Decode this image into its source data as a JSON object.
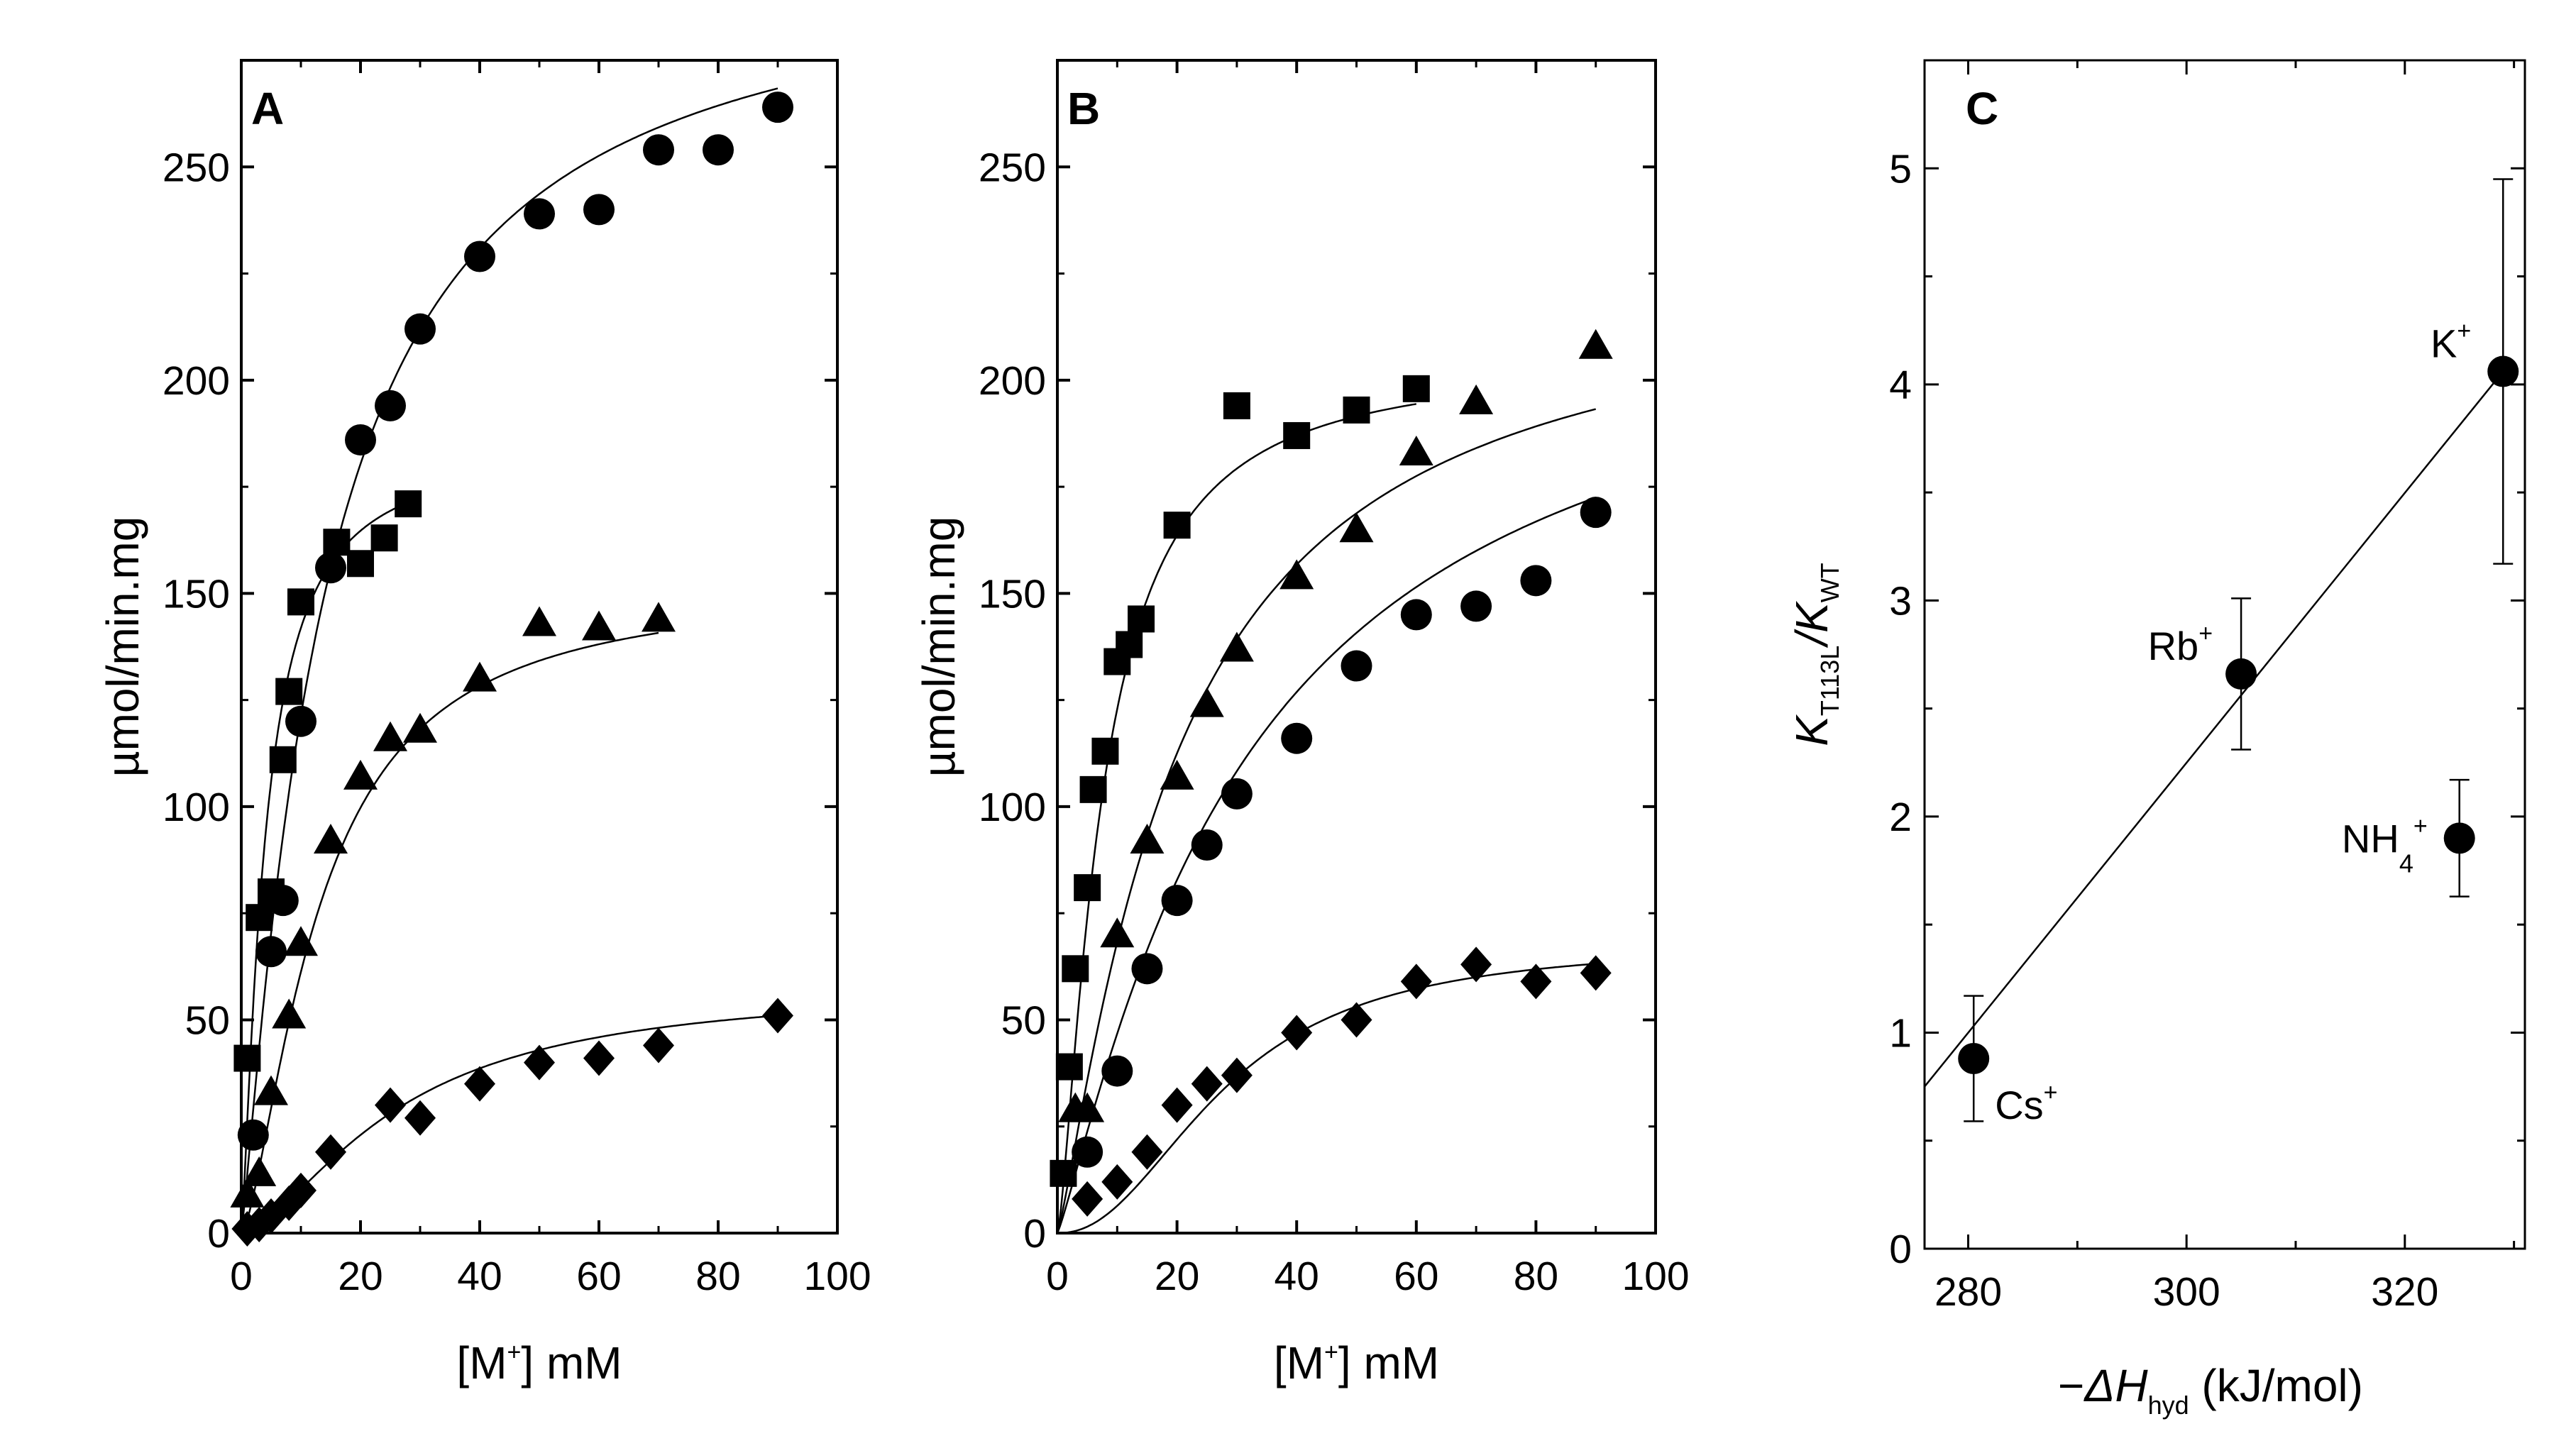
{
  "chart_data": [
    {
      "type": "scatter",
      "panel": "A",
      "ylabel": "µmol/min.mg",
      "xlabel_base": "[M",
      "xlabel_sup": "+",
      "xlabel_rest": "] mM",
      "xlim": [
        0,
        100
      ],
      "ylim": [
        0,
        275
      ],
      "xticks": [
        0,
        20,
        40,
        60,
        80,
        100
      ],
      "yticks": [
        0,
        50,
        100,
        150,
        200,
        250
      ],
      "series": [
        {
          "name": "circle",
          "marker": "circle",
          "x": [
            2,
            5,
            7,
            10,
            15,
            20,
            25,
            30,
            40,
            50,
            60,
            70,
            80,
            90
          ],
          "y": [
            23,
            66,
            78,
            120,
            156,
            186,
            194,
            212,
            229,
            239,
            240,
            254,
            254,
            264
          ],
          "fit": {
            "vmax": 300,
            "km": 14,
            "h": 1.15
          }
        },
        {
          "name": "square",
          "marker": "square",
          "x": [
            1,
            3,
            5,
            7,
            8,
            10,
            16,
            20,
            24,
            28
          ],
          "y": [
            41,
            74,
            80,
            111,
            127,
            148,
            162,
            157,
            163,
            171
          ],
          "fit": {
            "vmax": 185,
            "km": 4,
            "h": 1.3
          }
        },
        {
          "name": "triangle",
          "marker": "triangle",
          "x": [
            1,
            3,
            5,
            8,
            10,
            15,
            20,
            25,
            30,
            40,
            50,
            60,
            70
          ],
          "y": [
            9,
            14,
            33,
            51,
            68,
            92,
            107,
            116,
            118,
            130,
            143,
            142,
            144
          ],
          "fit": {
            "vmax": 152,
            "km": 13,
            "h": 1.5
          }
        },
        {
          "name": "diamond",
          "marker": "diamond",
          "x": [
            1,
            3,
            5,
            8,
            10,
            15,
            25,
            30,
            40,
            50,
            60,
            70,
            90
          ],
          "y": [
            1,
            2,
            4,
            7,
            10,
            19,
            30,
            27,
            35,
            40,
            41,
            44,
            51
          ],
          "fit": {
            "vmax": 58,
            "km": 26,
            "h": 1.6
          }
        }
      ]
    },
    {
      "type": "scatter",
      "panel": "B",
      "ylabel": "µmol/min.mg",
      "xlabel_base": "[M",
      "xlabel_sup": "+",
      "xlabel_rest": "] mM",
      "xlim": [
        0,
        100
      ],
      "ylim": [
        0,
        275
      ],
      "xticks": [
        0,
        20,
        40,
        60,
        80,
        100
      ],
      "yticks": [
        0,
        50,
        100,
        150,
        200,
        250
      ],
      "series": [
        {
          "name": "square",
          "marker": "square",
          "x": [
            1,
            2,
            3,
            5,
            6,
            8,
            10,
            12,
            14,
            20,
            30,
            40,
            50,
            60
          ],
          "y": [
            14,
            39,
            62,
            81,
            104,
            113,
            134,
            138,
            144,
            166,
            194,
            187,
            193,
            198
          ],
          "fit": {
            "vmax": 205,
            "km": 7.5,
            "h": 1.4
          }
        },
        {
          "name": "triangle",
          "marker": "triangle",
          "x": [
            3,
            5,
            10,
            15,
            20,
            25,
            30,
            40,
            50,
            60,
            70,
            90
          ],
          "y": [
            29,
            29,
            70,
            92,
            107,
            124,
            137,
            154,
            165,
            183,
            195,
            208
          ],
          "fit": {
            "vmax": 225,
            "km": 20,
            "h": 1.2
          }
        },
        {
          "name": "circle",
          "marker": "circle",
          "x": [
            5,
            10,
            15,
            20,
            25,
            30,
            40,
            50,
            60,
            70,
            80,
            90
          ],
          "y": [
            19,
            38,
            62,
            78,
            91,
            103,
            116,
            133,
            145,
            147,
            153,
            169
          ],
          "fit": {
            "vmax": 225,
            "km": 32,
            "h": 1.15
          }
        },
        {
          "name": "diamond",
          "marker": "diamond",
          "x": [
            5,
            10,
            15,
            20,
            25,
            30,
            40,
            50,
            60,
            70,
            80,
            90
          ],
          "y": [
            8,
            12,
            19,
            30,
            35,
            37,
            47,
            50,
            59,
            63,
            59,
            61
          ],
          "fit": {
            "vmax": 68,
            "km": 28,
            "h": 2.2
          }
        }
      ]
    },
    {
      "type": "scatter",
      "panel": "C",
      "xlim": [
        276,
        331
      ],
      "ylim": [
        0,
        5.5
      ],
      "xticks": [
        280,
        300,
        320
      ],
      "yticks": [
        0,
        1,
        2,
        3,
        4,
        5
      ],
      "points": [
        {
          "label": "Cs",
          "label_sup": "+",
          "label_sub": "",
          "x": 280.5,
          "y": 0.88,
          "err": 0.29
        },
        {
          "label": "Rb",
          "label_sup": "+",
          "label_sub": "",
          "x": 305,
          "y": 2.66,
          "err": 0.35
        },
        {
          "label": "K",
          "label_sup": "+",
          "label_sub": "",
          "x": 329,
          "y": 4.06,
          "err": 0.89
        },
        {
          "label": "NH",
          "label_sup": "+",
          "label_sub": "4",
          "x": 325,
          "y": 1.9,
          "err": 0.27
        }
      ],
      "fit_line": {
        "x": [
          276,
          329
        ],
        "y": [
          0.75,
          4.06
        ]
      },
      "ylabel": {
        "k": "K",
        "sub1": "T113L",
        "slash": "/",
        "k2": "K",
        "sub2": "WT"
      },
      "xlabel": {
        "minus": "−",
        "delta": "Δ",
        "h": "H",
        "sub": "hyd",
        "rest": " (kJ/mol)"
      }
    }
  ]
}
